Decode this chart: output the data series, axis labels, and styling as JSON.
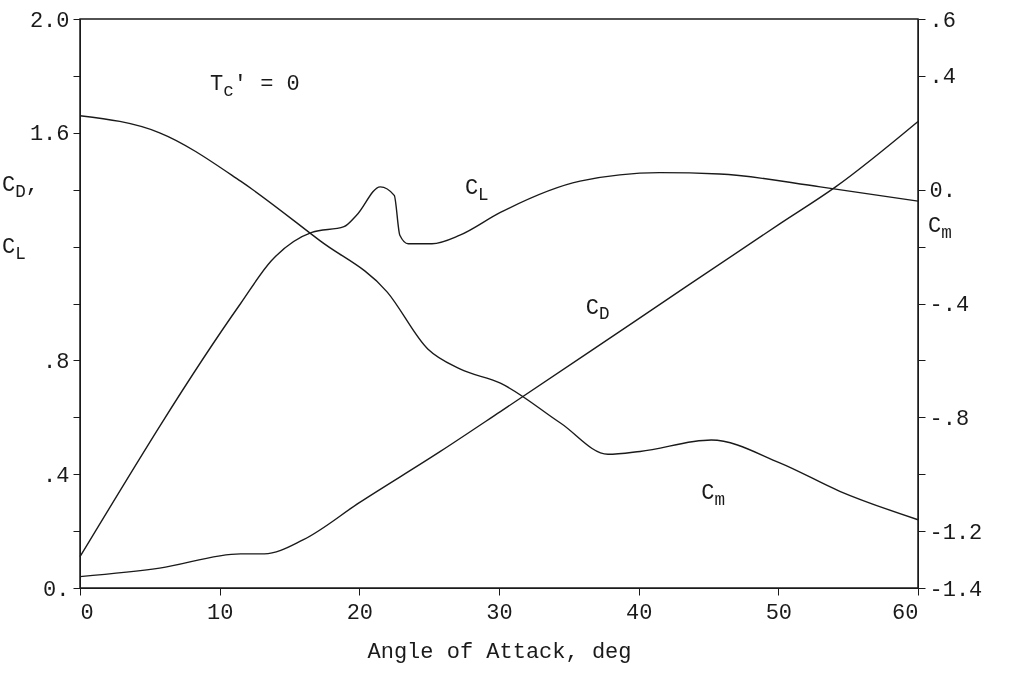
{
  "chart_data": {
    "type": "line",
    "xlabel": "Angle of Attack, deg",
    "ylabel": "C$_{D}$, C$_{L}$",
    "y2label": "C$_{m}$",
    "annotations": [
      "T$_{c}$' = 0"
    ],
    "xlim": [
      0,
      60
    ],
    "xticks": [
      0,
      10,
      20,
      30,
      40,
      50,
      60
    ],
    "ylim": [
      0,
      2.0
    ],
    "yticks": [
      {
        "value": 0,
        "label": "0."
      },
      {
        "value": 0.2,
        "label": null
      },
      {
        "value": 0.4,
        "label": ".4"
      },
      {
        "value": 0.6,
        "label": null
      },
      {
        "value": 0.8,
        "label": ".8"
      },
      {
        "value": 1.0,
        "label": null
      },
      {
        "value": 1.2,
        "label": null
      },
      {
        "value": 1.4,
        "label": null
      },
      {
        "value": 1.6,
        "label": "1.6"
      },
      {
        "value": 1.8,
        "label": null
      },
      {
        "value": 2.0,
        "label": "2.0"
      }
    ],
    "y2lim": [
      -1.4,
      0.6
    ],
    "y2ticks": [
      {
        "value": -1.4,
        "label": "-1.4"
      },
      {
        "value": -1.2,
        "label": "-1.2"
      },
      {
        "value": -1.0,
        "label": null
      },
      {
        "value": -0.8,
        "label": "-.8"
      },
      {
        "value": -0.6,
        "label": null
      },
      {
        "value": -0.4,
        "label": "-.4"
      },
      {
        "value": -0.2,
        "label": null
      },
      {
        "value": 0,
        "label": "0."
      },
      {
        "value": 0.4,
        "label": ".4"
      },
      {
        "value": 0.6,
        "label": ".6"
      }
    ],
    "grid": false,
    "marker": "none",
    "line_style": "solid",
    "series": [
      {
        "name": "C$_{L}$",
        "color": "#1a1a1a",
        "x": [
          0,
          11.5,
          13.7,
          16.6,
          18.9,
          19.8,
          21.5,
          22.5,
          22.9,
          23.5,
          25.2,
          27.2,
          30.1,
          35.8,
          41.5,
          45.8,
          53,
          60
        ],
        "values": [
          0.11,
          1.0,
          1.15,
          1.25,
          1.27,
          1.31,
          1.41,
          1.38,
          1.24,
          1.21,
          1.21,
          1.24,
          1.32,
          1.43,
          1.46,
          1.455,
          1.41,
          1.36
        ]
      },
      {
        "name": "C$_{D}$",
        "color": "#1a1a1a",
        "x": [
          0,
          5.7,
          11.5,
          13.2,
          16,
          20,
          25.8,
          30.1,
          39.8,
          50.1,
          54.1,
          60
        ],
        "values": [
          0.04,
          0.07,
          0.12,
          0.12,
          0.17,
          0.3,
          0.48,
          0.62,
          0.94,
          1.28,
          1.41,
          1.64
        ]
      },
      {
        "name": "C$_{m}$",
        "color": "#1a1a1a",
        "axis": "y2",
        "x": [
          0,
          5.7,
          11.5,
          17.2,
          22,
          24.9,
          27.2,
          30.1,
          34.4,
          37.8,
          40.1,
          45.2,
          50.1,
          54.4,
          60
        ],
        "values": [
          0.26,
          0.2,
          0.03,
          -0.18,
          -0.36,
          -0.56,
          -0.63,
          -0.68,
          -0.82,
          -0.93,
          -0.92,
          -0.88,
          -0.96,
          -1.06,
          -1.16
        ]
      }
    ]
  }
}
